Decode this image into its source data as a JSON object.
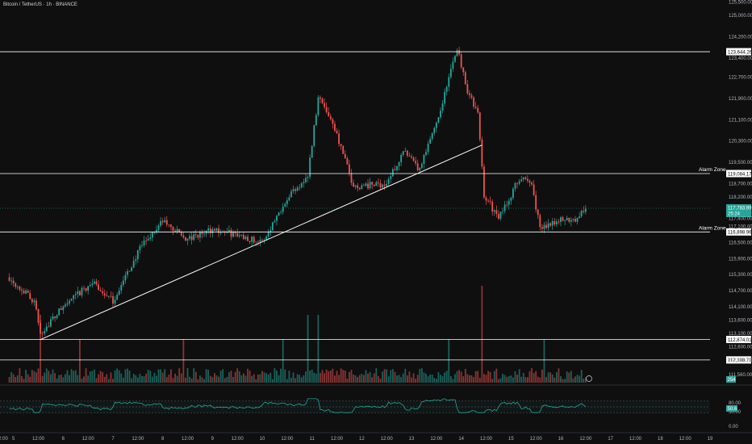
{
  "header": {
    "title": "Bitcoin / TetherUS · 1h · BINANCE"
  },
  "chart_data": [
    {
      "type": "candlestick",
      "symbol": "Bitcoin / TetherUS",
      "interval": "1h",
      "exchange": "BINANCE",
      "x_ticks": [
        "2:00",
        "5",
        "12:00",
        "6",
        "12:00",
        "7",
        "12:00",
        "8",
        "12:00",
        "9",
        "12:00",
        "10",
        "12:00",
        "11",
        "12:00",
        "12",
        "12:00",
        "13",
        "12:00",
        "14",
        "12:00",
        "15",
        "12:00",
        "16",
        "12:00",
        "17",
        "12:00",
        "18",
        "12:00",
        "19"
      ],
      "y_ticks": [
        125500,
        125000,
        124200,
        123400,
        122700,
        121900,
        121100,
        120300,
        119500,
        118700,
        118200,
        117400,
        117100,
        116500,
        115900,
        115300,
        114700,
        114100,
        113600,
        113100,
        112600,
        112100,
        111560
      ],
      "y_tick_labels": [
        "125,500.00",
        "125,000.00",
        "124,200.00",
        "123,400.00",
        "122,700.00",
        "121,900.00",
        "121,100.00",
        "120,300.00",
        "119,500.00",
        "118,700.00",
        "118,200.00",
        "117,400.00",
        "117,100.00",
        "116,500.00",
        "115,900.00",
        "115,300.00",
        "114,700.00",
        "114,100.00",
        "113,600.00",
        "113,100.00",
        "112,600.00",
        "112,100.00",
        "111,560.00"
      ],
      "ylim": [
        111500,
        125700
      ],
      "price_path_anchors": [
        {
          "x": "Aug 4 22:00",
          "y": 115200
        },
        {
          "x": "Aug 5 10:00",
          "y": 114300
        },
        {
          "x": "Aug 5 13:00",
          "y": 113100
        },
        {
          "x": "Aug 6 00:00",
          "y": 114100
        },
        {
          "x": "Aug 6 14:00",
          "y": 115000
        },
        {
          "x": "Aug 7 00:00",
          "y": 114300
        },
        {
          "x": "Aug 7 14:00",
          "y": 116400
        },
        {
          "x": "Aug 8 00:00",
          "y": 117300
        },
        {
          "x": "Aug 8 12:00",
          "y": 116600
        },
        {
          "x": "Aug 9 00:00",
          "y": 117000
        },
        {
          "x": "Aug 9 16:00",
          "y": 116700
        },
        {
          "x": "Aug 10 00:00",
          "y": 116500
        },
        {
          "x": "Aug 10 12:00",
          "y": 118200
        },
        {
          "x": "Aug 10 22:00",
          "y": 119000
        },
        {
          "x": "Aug 11 03:00",
          "y": 122000
        },
        {
          "x": "Aug 11 10:00",
          "y": 121000
        },
        {
          "x": "Aug 11 20:00",
          "y": 118600
        },
        {
          "x": "Aug 12 12:00",
          "y": 118700
        },
        {
          "x": "Aug 12 20:00",
          "y": 119900
        },
        {
          "x": "Aug 13 04:00",
          "y": 119200
        },
        {
          "x": "Aug 13 14:00",
          "y": 121500
        },
        {
          "x": "Aug 13 22:00",
          "y": 123800
        },
        {
          "x": "Aug 14 03:00",
          "y": 122200
        },
        {
          "x": "Aug 14 08:00",
          "y": 121300
        },
        {
          "x": "Aug 14 11:00",
          "y": 118300
        },
        {
          "x": "Aug 14 18:00",
          "y": 117400
        },
        {
          "x": "Aug 15 04:00",
          "y": 118900
        },
        {
          "x": "Aug 15 10:00",
          "y": 118700
        },
        {
          "x": "Aug 15 14:00",
          "y": 117000
        },
        {
          "x": "Aug 15 20:00",
          "y": 117300
        },
        {
          "x": "Aug 16 08:00",
          "y": 117400
        },
        {
          "x": "Aug 16 12:00",
          "y": 117800
        }
      ],
      "horizontal_levels": [
        {
          "price": 123644.26,
          "label": "123,644.26",
          "name": ""
        },
        {
          "price": 119084.17,
          "label": "119,084.17",
          "name": "Alarm Zone"
        },
        {
          "price": 116898.96,
          "label": "116,898.96",
          "name": "Alarm Zone"
        },
        {
          "price": 112874.01,
          "label": "112,874.01",
          "name": ""
        },
        {
          "price": 112108.7,
          "label": "112,108.70",
          "name": ""
        }
      ],
      "trendline": {
        "from": {
          "x": "Aug 5 13:00",
          "y": 112870
        },
        "to": {
          "x": "Aug 14 10:00",
          "y": 120150
        }
      },
      "last_price": {
        "value": "117,783.99",
        "countdown": "25:24",
        "color": "#26a69a"
      },
      "colors": {
        "up": "#26a69a",
        "down": "#ef5350",
        "background": "#0f0f0f",
        "line": "#ffffff"
      }
    },
    {
      "type": "bar",
      "name": "Volume",
      "last_value_label": "254",
      "notable_spikes": [
        {
          "x": "Aug 5 13:00",
          "level": "high"
        },
        {
          "x": "Aug 6 08:00",
          "level": "medium"
        },
        {
          "x": "Aug 8 10:00",
          "level": "medium"
        },
        {
          "x": "Aug 10 10:00",
          "level": "medium"
        },
        {
          "x": "Aug 10 22:00",
          "level": "high"
        },
        {
          "x": "Aug 11 03:00",
          "level": "high"
        },
        {
          "x": "Aug 13 18:00",
          "level": "medium"
        },
        {
          "x": "Aug 14 10:00",
          "level": "very high"
        },
        {
          "x": "Aug 15 16:00",
          "level": "medium"
        }
      ]
    },
    {
      "type": "line",
      "name": "RSI",
      "y_tick_labels": [
        "80.00",
        "50.00",
        "0.00"
      ],
      "upper_band": 70,
      "lower_band": 30,
      "last_value_label": "50.6",
      "line_color": "#26a69a"
    }
  ]
}
